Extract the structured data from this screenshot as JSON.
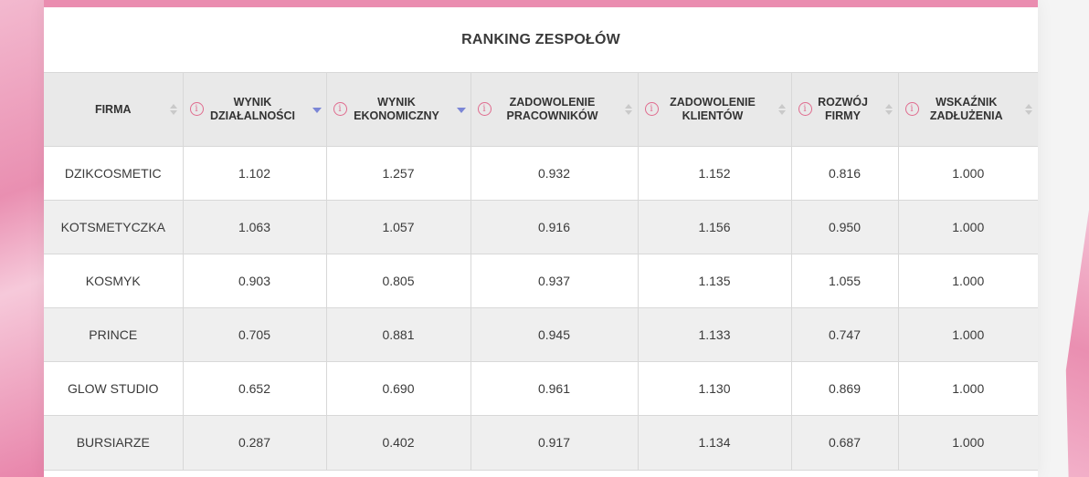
{
  "title": "RANKING ZESPOŁÓW",
  "columns": [
    {
      "label": "FIRMA",
      "info": false,
      "sort": "none"
    },
    {
      "label": "WYNIK DZIAŁALNOŚCI",
      "info": true,
      "sort": "desc"
    },
    {
      "label": "WYNIK EKONOMICZNY",
      "info": true,
      "sort": "desc"
    },
    {
      "label": "ZADOWOLENIE PRACOWNIKÓW",
      "info": true,
      "sort": "none"
    },
    {
      "label": "ZADOWOLENIE KLIENTÓW",
      "info": true,
      "sort": "none"
    },
    {
      "label": "ROZWÓJ FIRMY",
      "info": true,
      "sort": "none"
    },
    {
      "label": "WSKAŹNIK ZADŁUŻENIA",
      "info": true,
      "sort": "none"
    }
  ],
  "rows": [
    [
      "DZIKCOSMETIC",
      "1.102",
      "1.257",
      "0.932",
      "1.152",
      "0.816",
      "1.000"
    ],
    [
      "KOTSMETYCZKA",
      "1.063",
      "1.057",
      "0.916",
      "1.156",
      "0.950",
      "1.000"
    ],
    [
      "KOSMYK",
      "0.903",
      "0.805",
      "0.937",
      "1.135",
      "1.055",
      "1.000"
    ],
    [
      "PRINCE",
      "0.705",
      "0.881",
      "0.945",
      "1.133",
      "0.747",
      "1.000"
    ],
    [
      "GLOW STUDIO",
      "0.652",
      "0.690",
      "0.961",
      "1.130",
      "0.869",
      "1.000"
    ],
    [
      "BURSIARZE",
      "0.287",
      "0.402",
      "0.917",
      "1.134",
      "0.687",
      "1.000"
    ]
  ],
  "info_glyph": "i",
  "colors": {
    "accent": "#ea8db0",
    "info": "#e06b8e",
    "sort_active": "#7b86d6"
  }
}
